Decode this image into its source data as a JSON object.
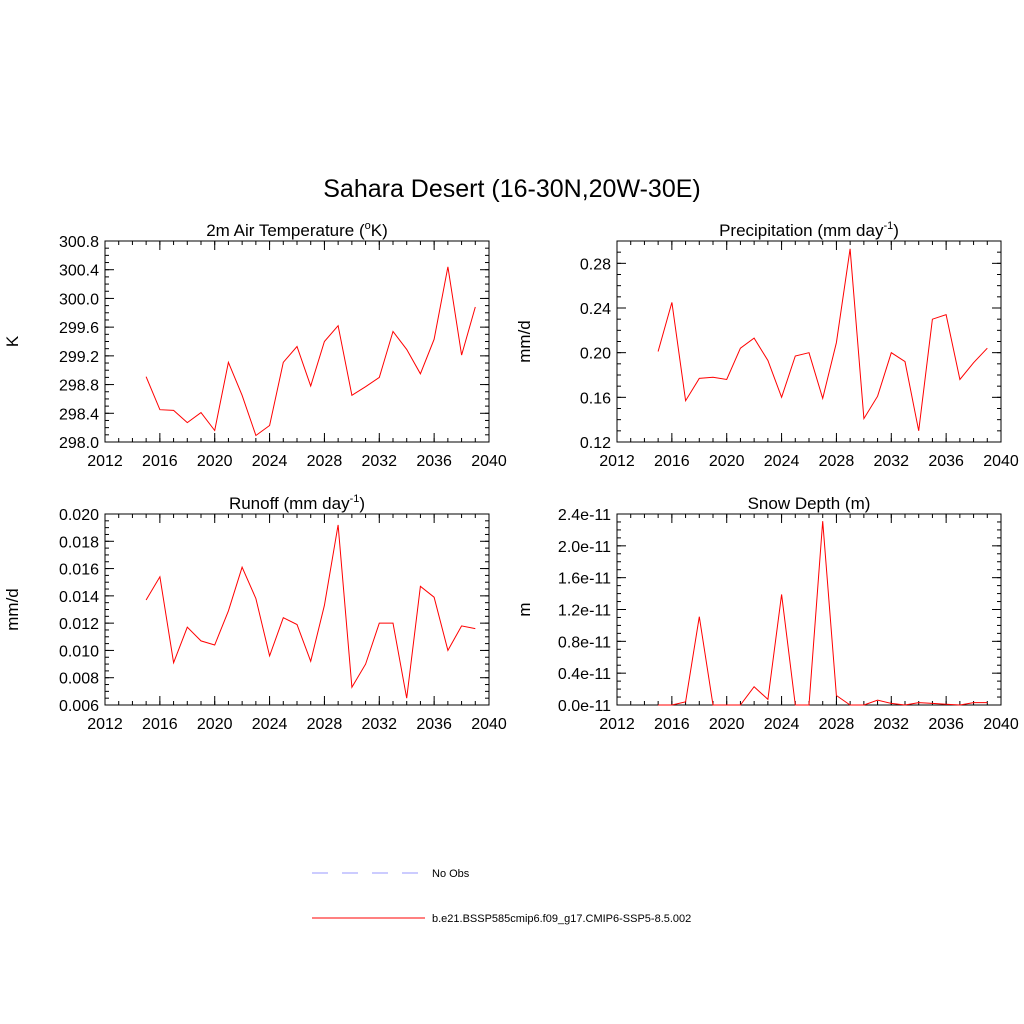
{
  "title": "Sahara Desert (16-30N,20W-30E)",
  "colors": {
    "model": "#ff0000",
    "obs": "#9999ff",
    "axis": "#000000"
  },
  "legend": [
    {
      "label": "No Obs",
      "style": "dashed",
      "color": "#9999ff"
    },
    {
      "label": "b.e21.BSSP585cmip6.f09_g17.CMIP6-SSP5-8.5.002",
      "style": "solid",
      "color": "#ff0000"
    }
  ],
  "chart_data": [
    {
      "type": "line",
      "title": "2m Air Temperature (",
      "title_sup": "o",
      "title_after": "K)",
      "ylabel": "K",
      "xlim": [
        2012,
        2040
      ],
      "xticks": [
        2012,
        2016,
        2020,
        2024,
        2028,
        2032,
        2036,
        2040
      ],
      "ylim": [
        298.0,
        300.8
      ],
      "yticks": [
        "298.0",
        "298.4",
        "298.8",
        "299.2",
        "299.6",
        "300.0",
        "300.4",
        "300.8"
      ],
      "x": [
        2015,
        2016,
        2017,
        2018,
        2019,
        2020,
        2021,
        2022,
        2023,
        2024,
        2025,
        2026,
        2027,
        2028,
        2029,
        2030,
        2031,
        2032,
        2033,
        2034,
        2035,
        2036,
        2037,
        2038,
        2039
      ],
      "series": [
        {
          "values": [
            298.91,
            298.45,
            298.44,
            298.27,
            298.41,
            298.16,
            299.11,
            298.65,
            298.09,
            298.23,
            299.11,
            299.33,
            298.78,
            299.4,
            299.62,
            298.65,
            298.77,
            298.9,
            299.54,
            299.29,
            298.95,
            299.43,
            300.44,
            299.21,
            299.88
          ]
        }
      ]
    },
    {
      "type": "line",
      "title": "Precipitation (mm day",
      "title_sup": "-1",
      "title_after": ")",
      "ylabel": "mm/d",
      "xlim": [
        2012,
        2040
      ],
      "xticks": [
        2012,
        2016,
        2020,
        2024,
        2028,
        2032,
        2036,
        2040
      ],
      "ylim": [
        0.12,
        0.3
      ],
      "yticks": [
        "0.12",
        "0.16",
        "0.20",
        "0.24",
        "0.28"
      ],
      "x": [
        2015,
        2016,
        2017,
        2018,
        2019,
        2020,
        2021,
        2022,
        2023,
        2024,
        2025,
        2026,
        2027,
        2028,
        2029,
        2030,
        2031,
        2032,
        2033,
        2034,
        2035,
        2036,
        2037,
        2038,
        2039
      ],
      "series": [
        {
          "values": [
            0.201,
            0.245,
            0.157,
            0.177,
            0.178,
            0.176,
            0.204,
            0.213,
            0.193,
            0.16,
            0.197,
            0.2,
            0.159,
            0.209,
            0.293,
            0.141,
            0.161,
            0.2,
            0.192,
            0.13,
            0.23,
            0.234,
            0.176,
            0.191,
            0.204
          ]
        }
      ]
    },
    {
      "type": "line",
      "title": "Runoff (mm day",
      "title_sup": "-1",
      "title_after": ")",
      "ylabel": "mm/d",
      "xlim": [
        2012,
        2040
      ],
      "xticks": [
        2012,
        2016,
        2020,
        2024,
        2028,
        2032,
        2036,
        2040
      ],
      "ylim": [
        0.006,
        0.02
      ],
      "yticks": [
        "0.006",
        "0.008",
        "0.010",
        "0.012",
        "0.014",
        "0.016",
        "0.018",
        "0.020"
      ],
      "x": [
        2015,
        2016,
        2017,
        2018,
        2019,
        2020,
        2021,
        2022,
        2023,
        2024,
        2025,
        2026,
        2027,
        2028,
        2029,
        2030,
        2031,
        2032,
        2033,
        2034,
        2035,
        2036,
        2037,
        2038,
        2039
      ],
      "series": [
        {
          "values": [
            0.0137,
            0.0154,
            0.0091,
            0.0117,
            0.0107,
            0.0104,
            0.0129,
            0.0161,
            0.0138,
            0.0096,
            0.0124,
            0.0119,
            0.0092,
            0.0133,
            0.0192,
            0.0073,
            0.009,
            0.012,
            0.012,
            0.0065,
            0.0147,
            0.0139,
            0.01,
            0.0118,
            0.0116
          ]
        }
      ]
    },
    {
      "type": "line",
      "title": "Snow Depth (m)",
      "title_sup": "",
      "title_after": "",
      "ylabel": "m",
      "xlim": [
        2012,
        2040
      ],
      "xticks": [
        2012,
        2016,
        2020,
        2024,
        2028,
        2032,
        2036,
        2040
      ],
      "ylim": [
        0.0,
        2.4e-11
      ],
      "yticks": [
        "0.0e-11",
        "0.4e-11",
        "0.8e-11",
        "1.2e-11",
        "1.6e-11",
        "2.0e-11",
        "2.4e-11"
      ],
      "x": [
        2015,
        2016,
        2017,
        2018,
        2019,
        2020,
        2021,
        2022,
        2023,
        2024,
        2025,
        2026,
        2027,
        2028,
        2029,
        2030,
        2031,
        2032,
        2033,
        2034,
        2035,
        2036,
        2037,
        2038,
        2039
      ],
      "series": [
        {
          "values": [
            0,
            0,
            4e-13,
            1.11e-11,
            0,
            0,
            0,
            2.3e-12,
            7e-13,
            1.39e-11,
            0,
            0,
            2.31e-11,
            1.2e-12,
            0,
            0,
            6e-13,
            2e-13,
            0,
            3e-13,
            2e-13,
            1e-13,
            0,
            3e-13,
            3e-13
          ]
        }
      ]
    }
  ]
}
